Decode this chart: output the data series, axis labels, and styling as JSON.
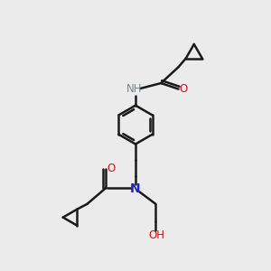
{
  "bg_color": "#ebebeb",
  "bond_color": "#1a1a1a",
  "bond_width": 1.8,
  "N_color": "#2222bb",
  "O_color": "#cc1111",
  "H_color": "#6e8b8b",
  "font_size": 8.5,
  "fig_size": [
    3.0,
    3.0
  ],
  "dpi": 100,
  "xlim": [
    0,
    10
  ],
  "ylim": [
    0,
    10
  ]
}
